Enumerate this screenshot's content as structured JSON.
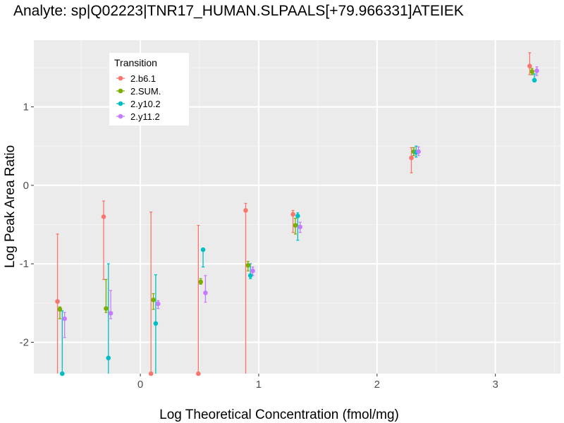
{
  "chart_data": {
    "type": "scatter",
    "title": "Analyte: sp|Q02223|TNR17_HUMAN.SLPAALS[+79.966331]ATEIEK",
    "xlabel": "Log Theoretical Concentration (fmol/mg)",
    "ylabel": "Log Peak Area Ratio",
    "xlim": [
      -0.9,
      3.55
    ],
    "ylim": [
      -2.4,
      1.85
    ],
    "x_ticks": [
      0,
      1,
      2,
      3
    ],
    "x_tick_labels": [
      "0",
      "1",
      "2",
      "3"
    ],
    "y_ticks": [
      -2,
      -1,
      0,
      1
    ],
    "y_tick_labels": [
      "-2",
      "-1",
      "0",
      "1"
    ],
    "grid": true,
    "legend_title": "Transition",
    "legend_position": "top-left",
    "series": [
      {
        "name": "2.b6.1",
        "color": "#F8766D",
        "points": [
          {
            "x": -0.7,
            "y": -1.48,
            "lo": -2.4,
            "hi": -0.62
          },
          {
            "x": -0.31,
            "y": -0.4,
            "lo": -1.2,
            "hi": -0.2
          },
          {
            "x": 0.09,
            "y": -2.4,
            "lo": -2.4,
            "hi": -0.34
          },
          {
            "x": 0.49,
            "y": -2.4,
            "lo": -2.4,
            "hi": -0.51
          },
          {
            "x": 0.89,
            "y": -0.32,
            "lo": -2.4,
            "hi": -0.23
          },
          {
            "x": 1.29,
            "y": -0.37,
            "lo": -0.6,
            "hi": -0.32
          },
          {
            "x": 2.29,
            "y": 0.35,
            "lo": 0.16,
            "hi": 0.48
          },
          {
            "x": 3.29,
            "y": 1.52,
            "lo": 1.41,
            "hi": 1.69
          }
        ]
      },
      {
        "name": "2.SUM.",
        "color": "#7CAE00",
        "points": [
          {
            "x": -0.68,
            "y": -1.58,
            "lo": -1.7,
            "hi": -1.55
          },
          {
            "x": -0.29,
            "y": -1.57,
            "lo": -1.62,
            "hi": -1.2
          },
          {
            "x": 0.11,
            "y": -1.46,
            "lo": -1.58,
            "hi": -1.38
          },
          {
            "x": 0.51,
            "y": -1.23,
            "lo": -1.26,
            "hi": -1.19
          },
          {
            "x": 0.91,
            "y": -1.02,
            "lo": -1.09,
            "hi": -0.97
          },
          {
            "x": 1.31,
            "y": -0.51,
            "lo": -0.62,
            "hi": -0.42
          },
          {
            "x": 2.31,
            "y": 0.43,
            "lo": 0.38,
            "hi": 0.48
          },
          {
            "x": 3.31,
            "y": 1.45,
            "lo": 1.41,
            "hi": 1.49
          }
        ]
      },
      {
        "name": "2.y10.2",
        "color": "#00BFC4",
        "points": [
          {
            "x": -0.66,
            "y": -2.4,
            "lo": -2.4,
            "hi": -1.6
          },
          {
            "x": -0.27,
            "y": -2.2,
            "lo": -2.4,
            "hi": -1.0
          },
          {
            "x": 0.13,
            "y": -1.76,
            "lo": -2.4,
            "hi": -1.14
          },
          {
            "x": 0.53,
            "y": -0.82,
            "lo": -1.04,
            "hi": -0.82
          },
          {
            "x": 0.93,
            "y": -1.15,
            "lo": -1.19,
            "hi": -1.0
          },
          {
            "x": 1.33,
            "y": -0.39,
            "lo": -0.7,
            "hi": -0.35
          },
          {
            "x": 2.33,
            "y": 0.42,
            "lo": 0.36,
            "hi": 0.5
          },
          {
            "x": 3.33,
            "y": 1.34,
            "lo": 1.34,
            "hi": 1.42
          }
        ]
      },
      {
        "name": "2.y11.2",
        "color": "#C77CFF",
        "points": [
          {
            "x": -0.64,
            "y": -1.7,
            "lo": -1.94,
            "hi": -1.62
          },
          {
            "x": -0.25,
            "y": -1.63,
            "lo": -1.7,
            "hi": -1.34
          },
          {
            "x": 0.15,
            "y": -1.51,
            "lo": -1.57,
            "hi": -1.47
          },
          {
            "x": 0.55,
            "y": -1.37,
            "lo": -1.49,
            "hi": -1.15
          },
          {
            "x": 0.95,
            "y": -1.09,
            "lo": -1.15,
            "hi": -1.04
          },
          {
            "x": 1.35,
            "y": -0.53,
            "lo": -0.6,
            "hi": -0.47
          },
          {
            "x": 2.35,
            "y": 0.43,
            "lo": 0.38,
            "hi": 0.49
          },
          {
            "x": 3.35,
            "y": 1.46,
            "lo": 1.4,
            "hi": 1.51
          }
        ]
      }
    ]
  }
}
